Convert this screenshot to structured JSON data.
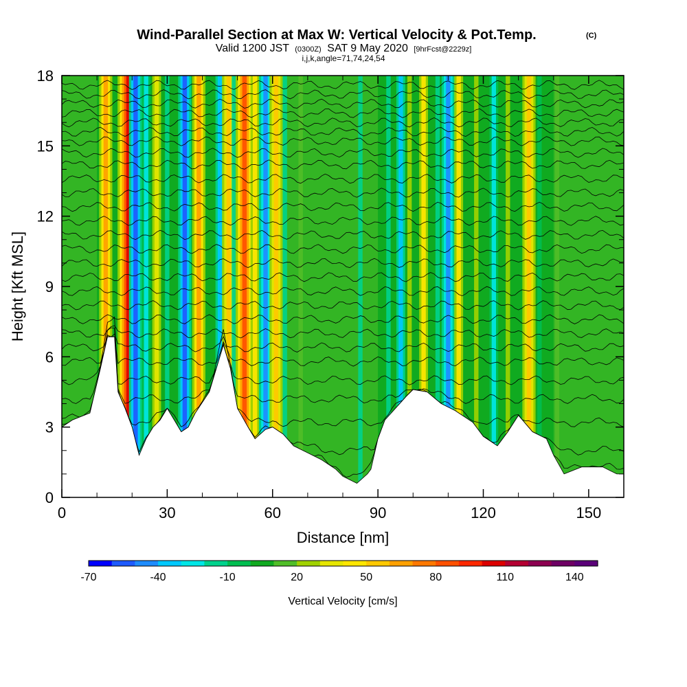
{
  "chart_data": {
    "type": "heatmap",
    "title": "Wind-Parallel Section at Max W: Vertical Velocity & Pot.Temp.",
    "title_mark": "(C)",
    "subtitle": {
      "valid": "Valid 1200 JST",
      "utc": "(0300Z)",
      "date": "SAT 9 May 2020",
      "forecast": "[9hrFcst@2229z]"
    },
    "params": "i,j,k,angle=71,74,24,54",
    "xlabel": "Distance [nm]",
    "ylabel": "Height [Kft MSL]",
    "xlim": [
      0,
      160
    ],
    "ylim": [
      0,
      18
    ],
    "x_ticks": [
      "0",
      "30",
      "60",
      "90",
      "120",
      "150"
    ],
    "y_ticks": [
      "0",
      "3",
      "6",
      "9",
      "12",
      "15",
      "18"
    ],
    "colorbar": {
      "label": "Vertical Velocity [cm/s]",
      "min": -70,
      "max": 150,
      "step": 10,
      "tick_labels": [
        "-70",
        "-40",
        "-10",
        "20",
        "50",
        "80",
        "110",
        "140"
      ],
      "colors": [
        "#0000ff",
        "#1e5aff",
        "#1e8cff",
        "#00c8ff",
        "#00e6e6",
        "#00d28c",
        "#00be50",
        "#10aa20",
        "#50be28",
        "#a0d200",
        "#e6e600",
        "#ffe600",
        "#ffc800",
        "#ffa000",
        "#ff7800",
        "#ff5000",
        "#ff2800",
        "#dc0000",
        "#b40032",
        "#8c0050",
        "#6e0064",
        "#5a0078"
      ]
    },
    "terrain_kft": [
      [
        0,
        3
      ],
      [
        3,
        3.3
      ],
      [
        8,
        3.6
      ],
      [
        11,
        5.5
      ],
      [
        13,
        6.85
      ],
      [
        15,
        6.85
      ],
      [
        16,
        4.5
      ],
      [
        18,
        3.8
      ],
      [
        20,
        3.0
      ],
      [
        22,
        1.8
      ],
      [
        24,
        2.5
      ],
      [
        26,
        3.0
      ],
      [
        28,
        3.3
      ],
      [
        30,
        3.8
      ],
      [
        32,
        3.3
      ],
      [
        34,
        2.8
      ],
      [
        36,
        3.0
      ],
      [
        38,
        3.6
      ],
      [
        42,
        4.5
      ],
      [
        46,
        6.5
      ],
      [
        48,
        5.5
      ],
      [
        50,
        3.8
      ],
      [
        53,
        3.0
      ],
      [
        55,
        2.5
      ],
      [
        58,
        2.9
      ],
      [
        60,
        3.0
      ],
      [
        63,
        2.7
      ],
      [
        66,
        2.2
      ],
      [
        70,
        1.9
      ],
      [
        74,
        1.6
      ],
      [
        78,
        1.2
      ],
      [
        80,
        0.9
      ],
      [
        84,
        0.6
      ],
      [
        87,
        1.0
      ],
      [
        88,
        1.2
      ],
      [
        90,
        2.5
      ],
      [
        92,
        3.3
      ],
      [
        95,
        3.8
      ],
      [
        98,
        4.3
      ],
      [
        100,
        4.6
      ],
      [
        104,
        4.5
      ],
      [
        108,
        4.0
      ],
      [
        112,
        3.7
      ],
      [
        117,
        3.2
      ],
      [
        120,
        2.6
      ],
      [
        124,
        2.2
      ],
      [
        127,
        2.8
      ],
      [
        130,
        3.5
      ],
      [
        134,
        2.8
      ],
      [
        138,
        2.5
      ],
      [
        140,
        1.8
      ],
      [
        143,
        1.0
      ],
      [
        148,
        1.3
      ],
      [
        154,
        1.3
      ],
      [
        158,
        1.0
      ],
      [
        160,
        1.0
      ]
    ],
    "updraft_bands": [
      {
        "x": 12.5,
        "w_cm_s": 60
      },
      {
        "x": 19,
        "w_cm_s": 100
      },
      {
        "x": 21,
        "w_cm_s": -60
      },
      {
        "x": 24,
        "w_cm_s": -30
      },
      {
        "x": 27,
        "w_cm_s": 30
      },
      {
        "x": 30,
        "w_cm_s": -20
      },
      {
        "x": 35,
        "w_cm_s": -60
      },
      {
        "x": 39,
        "w_cm_s": 60
      },
      {
        "x": 45,
        "w_cm_s": -40
      },
      {
        "x": 47.5,
        "w_cm_s": 50
      },
      {
        "x": 49,
        "w_cm_s": -20
      },
      {
        "x": 52,
        "w_cm_s": 80
      },
      {
        "x": 55,
        "w_cm_s": 40
      },
      {
        "x": 58,
        "w_cm_s": -50
      },
      {
        "x": 61,
        "w_cm_s": 50
      },
      {
        "x": 63.5,
        "w_cm_s": -20
      },
      {
        "x": 68,
        "w_cm_s": 10
      },
      {
        "x": 85,
        "w_cm_s": -20
      },
      {
        "x": 93,
        "w_cm_s": -20
      },
      {
        "x": 96.5,
        "w_cm_s": -40
      },
      {
        "x": 99,
        "w_cm_s": 20
      },
      {
        "x": 103,
        "w_cm_s": 40
      },
      {
        "x": 107,
        "w_cm_s": -20
      },
      {
        "x": 110,
        "w_cm_s": -50
      },
      {
        "x": 113,
        "w_cm_s": 40
      },
      {
        "x": 118,
        "w_cm_s": 20
      },
      {
        "x": 123,
        "w_cm_s": -30
      },
      {
        "x": 127,
        "w_cm_s": 20
      },
      {
        "x": 133,
        "w_cm_s": 50
      },
      {
        "x": 136,
        "w_cm_s": -10
      },
      {
        "x": 141,
        "w_cm_s": 10
      }
    ],
    "contour_levels_kft": [
      0.8,
      2.0,
      3.2,
      4.2,
      5.0,
      5.8,
      6.4,
      7.0,
      7.6,
      8.2,
      8.8,
      9.4,
      10.0,
      10.6,
      11.2,
      11.8,
      12.4,
      13.0,
      13.6,
      14.2,
      14.7,
      15.2,
      15.6,
      16.0,
      16.4,
      16.8,
      17.2,
      17.6
    ]
  }
}
